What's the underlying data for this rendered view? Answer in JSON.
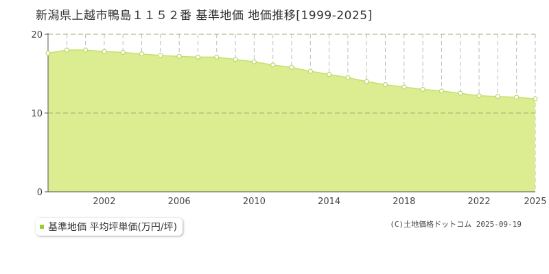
{
  "title": "新潟県上越市鴨島１１５２番 基準地価 地価推移[1999-2025]",
  "legend_label": "基準地価 平均坪単価(万円/坪)",
  "source": "(C)土地価格ドットコム 2025-09-19",
  "colors": {
    "fill": "#dcec90",
    "line": "#c4e070",
    "marker_stroke": "#b6d86a",
    "legend_marker": "#99cc33",
    "axis": "#555555",
    "grid_h": "#9ab06b",
    "grid_v": "#bbbbbb"
  },
  "chart_data": {
    "type": "area",
    "x": [
      1999,
      2000,
      2001,
      2002,
      2003,
      2004,
      2005,
      2006,
      2007,
      2008,
      2009,
      2010,
      2011,
      2012,
      2013,
      2014,
      2015,
      2016,
      2017,
      2018,
      2019,
      2020,
      2021,
      2022,
      2023,
      2024,
      2025
    ],
    "series": [
      {
        "name": "基準地価 平均坪単価(万円/坪)",
        "values": [
          17.6,
          18.0,
          18.0,
          17.8,
          17.7,
          17.5,
          17.3,
          17.2,
          17.1,
          17.1,
          16.8,
          16.5,
          16.1,
          15.8,
          15.3,
          14.9,
          14.5,
          14.0,
          13.6,
          13.3,
          13.0,
          12.8,
          12.5,
          12.2,
          12.1,
          12.0,
          11.8
        ]
      }
    ],
    "x_ticks": [
      "2002",
      "2006",
      "2010",
      "2014",
      "2018",
      "2022",
      "2025"
    ],
    "y_ticks": [
      "0",
      "10",
      "20"
    ],
    "xlim": [
      1999,
      2025
    ],
    "ylim": [
      0,
      20
    ],
    "grid": true
  }
}
